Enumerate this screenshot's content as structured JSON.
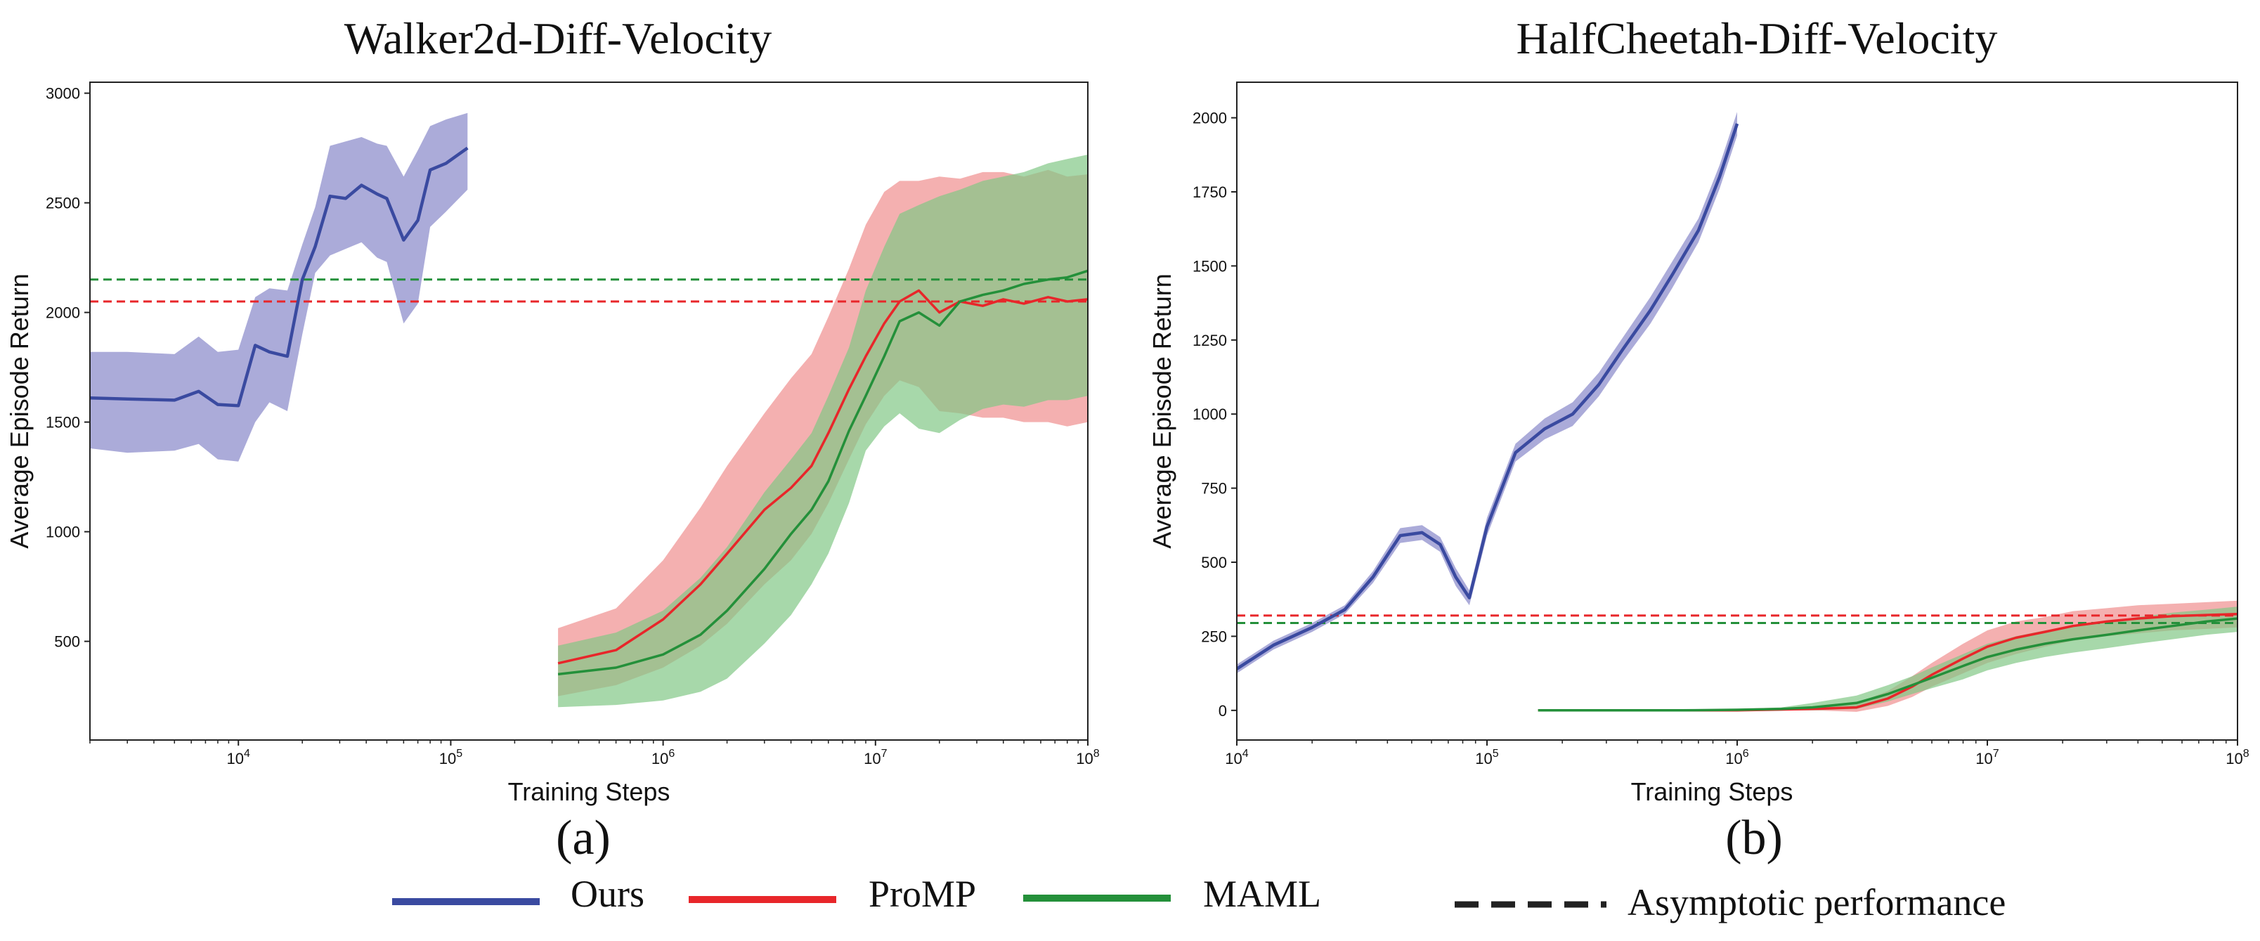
{
  "colors": {
    "ours": "#3a4aa0",
    "ours_band": "#8f8fcc",
    "promp": "#e8262a",
    "promp_band": "#f08f8f",
    "maml": "#24903a",
    "maml_band": "#82c886",
    "overlap_band": "#9e8f5e"
  },
  "legend": {
    "ours": "Ours",
    "promp": "ProMP",
    "maml": "MAML",
    "asymptotic": "Asymptotic performance"
  },
  "chart_data": [
    {
      "type": "line",
      "title": "Walker2d-Diff-Velocity",
      "subcaption": "(a)",
      "xlabel": "Training Steps",
      "ylabel": "Average Episode Return",
      "xscale": "log",
      "xlim": [
        2000,
        100000000
      ],
      "ylim": [
        50,
        3050
      ],
      "xticks": [
        {
          "value": 10000,
          "base": "10",
          "exp": "4"
        },
        {
          "value": 100000,
          "base": "10",
          "exp": "5"
        },
        {
          "value": 1000000,
          "base": "10",
          "exp": "6"
        },
        {
          "value": 10000000,
          "base": "10",
          "exp": "7"
        },
        {
          "value": 100000000,
          "base": "10",
          "exp": "8"
        }
      ],
      "yticks": [
        {
          "value": 500,
          "label": "500"
        },
        {
          "value": 1000,
          "label": "1000"
        },
        {
          "value": 1500,
          "label": "1500"
        },
        {
          "value": 2000,
          "label": "2000"
        },
        {
          "value": 2500,
          "label": "2500"
        },
        {
          "value": 3000,
          "label": "3000"
        }
      ],
      "asymptotes": [
        {
          "series": "MAML",
          "value": 2150
        },
        {
          "series": "ProMP",
          "value": 2050
        }
      ],
      "series": [
        {
          "name": "Ours",
          "x": [
            2000,
            3000,
            5000,
            6500,
            8000,
            10000,
            12000,
            14000,
            17000,
            20000,
            23000,
            27000,
            32000,
            38000,
            45000,
            50000,
            60000,
            70000,
            80000,
            95000,
            120000
          ],
          "y": [
            1610,
            1605,
            1600,
            1640,
            1580,
            1575,
            1850,
            1820,
            1800,
            2150,
            2300,
            2530,
            2520,
            2580,
            2540,
            2520,
            2330,
            2420,
            2650,
            2680,
            2750
          ],
          "lower": [
            1380,
            1360,
            1370,
            1400,
            1330,
            1320,
            1500,
            1590,
            1550,
            1900,
            2180,
            2260,
            2290,
            2320,
            2250,
            2230,
            1950,
            2040,
            2390,
            2460,
            2560
          ],
          "upper": [
            1820,
            1820,
            1810,
            1890,
            1820,
            1830,
            2070,
            2110,
            2100,
            2310,
            2480,
            2760,
            2780,
            2800,
            2770,
            2760,
            2620,
            2740,
            2850,
            2880,
            2910
          ]
        },
        {
          "name": "ProMP",
          "x": [
            320000,
            600000,
            1000000,
            1500000,
            2000000,
            3000000,
            4000000,
            5000000,
            6000000,
            7500000,
            9000000,
            11000000,
            13000000,
            16000000,
            20000000,
            25000000,
            32000000,
            40000000,
            50000000,
            65000000,
            80000000,
            100000000
          ],
          "y": [
            400,
            460,
            600,
            760,
            900,
            1100,
            1200,
            1300,
            1450,
            1650,
            1800,
            1950,
            2050,
            2100,
            2000,
            2050,
            2030,
            2060,
            2040,
            2070,
            2050,
            2060
          ],
          "lower": [
            250,
            300,
            380,
            480,
            580,
            760,
            870,
            990,
            1130,
            1330,
            1490,
            1620,
            1690,
            1660,
            1550,
            1540,
            1520,
            1520,
            1500,
            1500,
            1480,
            1500
          ],
          "upper": [
            560,
            650,
            870,
            1110,
            1300,
            1540,
            1700,
            1810,
            1980,
            2200,
            2400,
            2550,
            2600,
            2600,
            2620,
            2610,
            2640,
            2640,
            2620,
            2650,
            2620,
            2630
          ]
        },
        {
          "name": "MAML",
          "x": [
            320000,
            600000,
            1000000,
            1500000,
            2000000,
            3000000,
            4000000,
            5000000,
            6000000,
            7500000,
            9000000,
            11000000,
            13000000,
            16000000,
            20000000,
            25000000,
            32000000,
            40000000,
            50000000,
            65000000,
            80000000,
            100000000
          ],
          "y": [
            350,
            380,
            440,
            530,
            640,
            830,
            990,
            1100,
            1230,
            1460,
            1620,
            1800,
            1960,
            2000,
            1940,
            2050,
            2080,
            2100,
            2130,
            2150,
            2160,
            2190
          ],
          "lower": [
            200,
            210,
            230,
            270,
            330,
            490,
            620,
            760,
            900,
            1130,
            1370,
            1480,
            1540,
            1470,
            1450,
            1510,
            1560,
            1580,
            1570,
            1600,
            1600,
            1620
          ],
          "upper": [
            480,
            540,
            640,
            790,
            930,
            1180,
            1330,
            1450,
            1620,
            1840,
            2100,
            2300,
            2450,
            2490,
            2530,
            2560,
            2600,
            2620,
            2640,
            2680,
            2700,
            2720
          ]
        }
      ]
    },
    {
      "type": "line",
      "title": "HalfCheetah-Diff-Velocity",
      "subcaption": "(b)",
      "xlabel": "Training Steps",
      "ylabel": "Average Episode Return",
      "xscale": "log",
      "xlim": [
        10000,
        100000000
      ],
      "ylim": [
        -100,
        2120
      ],
      "xticks": [
        {
          "value": 10000,
          "base": "10",
          "exp": "4"
        },
        {
          "value": 100000,
          "base": "10",
          "exp": "5"
        },
        {
          "value": 1000000,
          "base": "10",
          "exp": "6"
        },
        {
          "value": 10000000,
          "base": "10",
          "exp": "7"
        },
        {
          "value": 100000000,
          "base": "10",
          "exp": "8"
        }
      ],
      "yticks": [
        {
          "value": 0,
          "label": "0"
        },
        {
          "value": 250,
          "label": "250"
        },
        {
          "value": 500,
          "label": "500"
        },
        {
          "value": 750,
          "label": "750"
        },
        {
          "value": 1000,
          "label": "1000"
        },
        {
          "value": 1250,
          "label": "1250"
        },
        {
          "value": 1500,
          "label": "1500"
        },
        {
          "value": 1750,
          "label": "1750"
        },
        {
          "value": 2000,
          "label": "2000"
        }
      ],
      "asymptotes": [
        {
          "series": "ProMP",
          "value": 320
        },
        {
          "series": "MAML",
          "value": 295
        }
      ],
      "series": [
        {
          "name": "Ours",
          "x": [
            10000,
            14000,
            20000,
            27000,
            35000,
            45000,
            55000,
            65000,
            75000,
            85000,
            100000,
            130000,
            170000,
            220000,
            280000,
            350000,
            450000,
            550000,
            700000,
            850000,
            1000000
          ],
          "y": [
            140,
            220,
            280,
            340,
            450,
            590,
            600,
            560,
            450,
            380,
            620,
            870,
            950,
            1000,
            1100,
            1220,
            1350,
            1470,
            1620,
            1800,
            1980
          ],
          "lower": [
            125,
            205,
            265,
            325,
            430,
            565,
            575,
            535,
            420,
            355,
            590,
            840,
            915,
            960,
            1060,
            1180,
            1305,
            1425,
            1580,
            1760,
            1940
          ],
          "upper": [
            155,
            235,
            295,
            355,
            470,
            615,
            625,
            585,
            480,
            405,
            650,
            900,
            985,
            1040,
            1140,
            1260,
            1395,
            1515,
            1660,
            1840,
            2020
          ]
        },
        {
          "name": "ProMP",
          "x": [
            160000,
            300000,
            600000,
            1000000,
            1500000,
            2000000,
            3000000,
            4000000,
            5000000,
            6000000,
            8000000,
            10000000,
            13000000,
            17000000,
            22000000,
            30000000,
            40000000,
            55000000,
            75000000,
            100000000
          ],
          "y": [
            0,
            0,
            0,
            0,
            3,
            5,
            10,
            40,
            80,
            120,
            175,
            215,
            245,
            265,
            285,
            300,
            310,
            318,
            322,
            325
          ],
          "lower": [
            -3,
            -3,
            -3,
            -3,
            0,
            0,
            -5,
            15,
            45,
            80,
            125,
            160,
            190,
            215,
            235,
            250,
            260,
            270,
            275,
            280
          ],
          "upper": [
            3,
            3,
            3,
            3,
            6,
            10,
            25,
            65,
            115,
            160,
            225,
            270,
            300,
            315,
            335,
            345,
            355,
            360,
            365,
            370
          ]
        },
        {
          "name": "MAML",
          "x": [
            160000,
            300000,
            600000,
            1000000,
            1500000,
            2000000,
            3000000,
            4000000,
            5000000,
            6000000,
            8000000,
            10000000,
            13000000,
            17000000,
            22000000,
            30000000,
            40000000,
            55000000,
            75000000,
            100000000
          ],
          "y": [
            0,
            0,
            0,
            2,
            5,
            10,
            25,
            55,
            85,
            110,
            150,
            180,
            205,
            225,
            240,
            255,
            270,
            285,
            300,
            310
          ],
          "lower": [
            -3,
            -3,
            -3,
            -1,
            0,
            0,
            5,
            30,
            55,
            75,
            105,
            135,
            160,
            180,
            195,
            210,
            225,
            240,
            255,
            265
          ],
          "upper": [
            3,
            3,
            3,
            5,
            10,
            25,
            50,
            85,
            115,
            145,
            190,
            225,
            250,
            270,
            285,
            300,
            315,
            330,
            340,
            350
          ]
        }
      ]
    }
  ]
}
